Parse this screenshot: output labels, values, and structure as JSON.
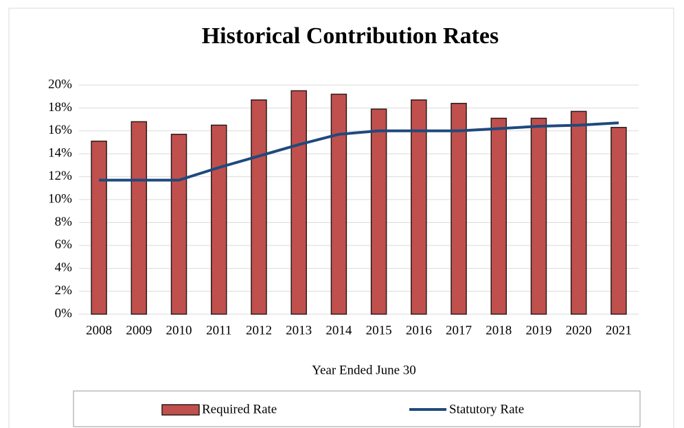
{
  "chart_data": {
    "type": "combo",
    "title": "Historical Contribution Rates",
    "x_label": "Year Ended June 30",
    "categories": [
      "2008",
      "2009",
      "2010",
      "2011",
      "2012",
      "2013",
      "2014",
      "2015",
      "2016",
      "2017",
      "2018",
      "2019",
      "2020",
      "2021"
    ],
    "series": [
      {
        "name": "Required Rate",
        "type": "bar",
        "color": "#c0504d",
        "values": [
          15.1,
          16.8,
          15.7,
          16.5,
          18.7,
          19.5,
          19.2,
          17.9,
          18.7,
          18.4,
          17.1,
          17.1,
          17.7,
          16.3
        ]
      },
      {
        "name": "Statutory Rate",
        "type": "line",
        "color": "#1f497d",
        "values": [
          11.7,
          11.7,
          11.7,
          12.8,
          13.8,
          14.8,
          15.7,
          16.0,
          16.0,
          16.0,
          16.2,
          16.4,
          16.5,
          16.7
        ]
      }
    ],
    "ylim": [
      0,
      20
    ],
    "yticks": [
      {
        "value": 0,
        "label": "0%"
      },
      {
        "value": 2,
        "label": "2%"
      },
      {
        "value": 4,
        "label": "4%"
      },
      {
        "value": 6,
        "label": "6%"
      },
      {
        "value": 8,
        "label": "8%"
      },
      {
        "value": 10,
        "label": "10%"
      },
      {
        "value": 12,
        "label": "12%"
      },
      {
        "value": 14,
        "label": "14%"
      },
      {
        "value": 16,
        "label": "16%"
      },
      {
        "value": 18,
        "label": "18%"
      },
      {
        "value": 20,
        "label": "20%"
      }
    ],
    "grid": true,
    "legend": "bottom"
  }
}
